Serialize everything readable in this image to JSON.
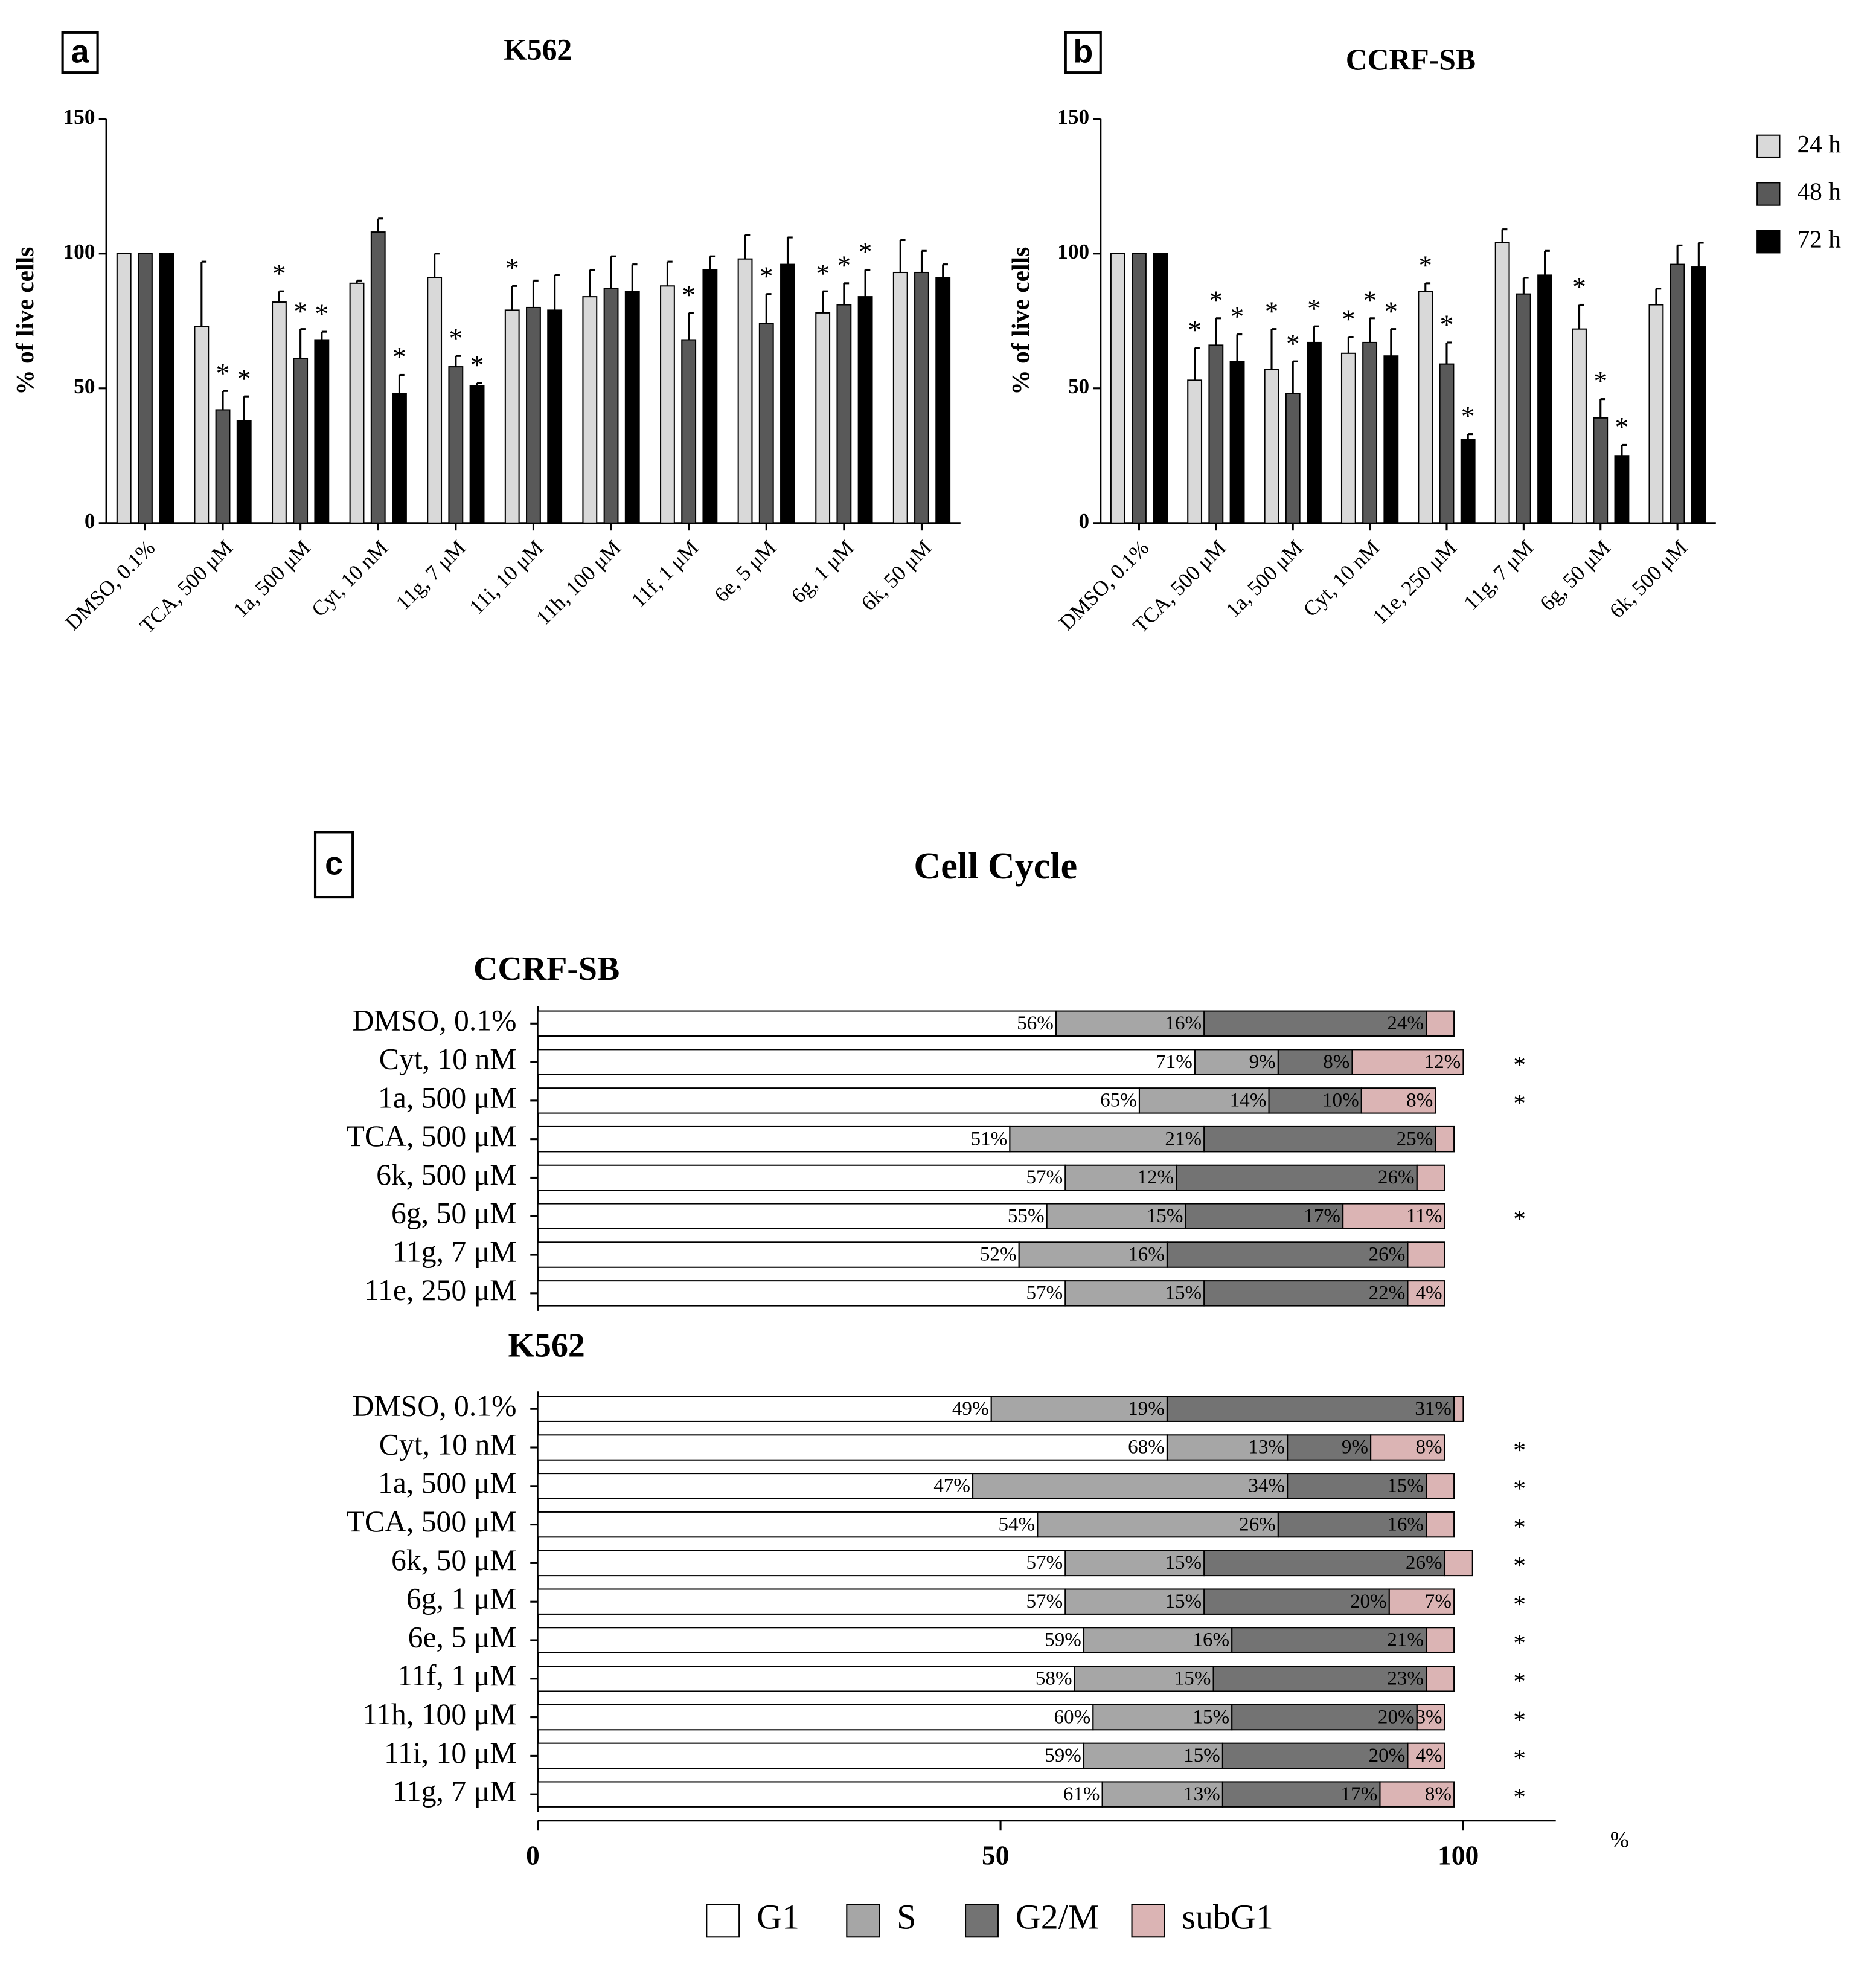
{
  "chart_data": [
    {
      "type": "bar",
      "panel": "a",
      "title": "K562",
      "ylabel": "% of live cells",
      "categories": [
        "DMSO, 0.1%",
        "TCA, 500 μM",
        "1a, 500 μM",
        "Cyt, 10 nM",
        "11g, 7 μM",
        "11i, 10 μM",
        "11h, 100 μM",
        "11f, 1 μM",
        "6e, 5 μM",
        "6g, 1 μM",
        "6k, 50 μM"
      ],
      "ylim": [
        0,
        150
      ],
      "yticks": [
        0,
        50,
        100,
        150
      ],
      "series": [
        {
          "color": "#d9d9d9",
          "values": [
            100,
            73,
            82,
            89,
            91,
            79,
            84,
            88,
            98,
            78,
            93
          ],
          "errors": [
            0,
            24,
            4,
            1,
            9,
            9,
            10,
            9,
            9,
            8,
            12
          ],
          "annotations": [
            null,
            null,
            "*",
            null,
            null,
            "*",
            null,
            null,
            null,
            "*",
            null
          ]
        },
        {
          "color": "#595959",
          "values": [
            100,
            42,
            61,
            108,
            58,
            80,
            87,
            68,
            74,
            81,
            93
          ],
          "errors": [
            0,
            7,
            11,
            5,
            4,
            10,
            12,
            10,
            11,
            8,
            8
          ],
          "annotations": [
            null,
            "*",
            "*",
            null,
            "*",
            null,
            null,
            "*",
            "*",
            "*",
            null
          ]
        },
        {
          "color": "#000000",
          "values": [
            100,
            38,
            68,
            48,
            51,
            79,
            86,
            94,
            96,
            84,
            91
          ],
          "errors": [
            0,
            9,
            3,
            7,
            1,
            13,
            10,
            5,
            10,
            10,
            5
          ],
          "annotations": [
            null,
            "*",
            "*",
            "*",
            "*",
            null,
            null,
            null,
            null,
            "*",
            null
          ]
        }
      ]
    },
    {
      "type": "bar",
      "panel": "b",
      "title": "CCRF-SB",
      "ylabel": "% of live cells",
      "categories": [
        "DMSO, 0.1%",
        "TCA, 500 μM",
        "1a, 500 μM",
        "Cyt, 10 nM",
        "11e, 250 μM",
        "11g, 7 μM",
        "6g, 50 μM",
        "6k, 500 μM"
      ],
      "ylim": [
        0,
        150
      ],
      "yticks": [
        0,
        50,
        100,
        150
      ],
      "series": [
        {
          "name": "24 h",
          "color": "#d9d9d9",
          "values": [
            100,
            53,
            57,
            63,
            86,
            104,
            72,
            81
          ],
          "errors": [
            0,
            12,
            15,
            6,
            3,
            5,
            9,
            6
          ],
          "annotations": [
            null,
            "*",
            "*",
            "*",
            "*",
            null,
            "*",
            null
          ]
        },
        {
          "name": "48 h",
          "color": "#595959",
          "values": [
            100,
            66,
            48,
            67,
            59,
            85,
            39,
            96
          ],
          "errors": [
            0,
            10,
            12,
            9,
            8,
            6,
            7,
            7
          ],
          "annotations": [
            null,
            "*",
            "*",
            "*",
            "*",
            null,
            "*",
            null
          ]
        },
        {
          "name": "72 h",
          "color": "#000000",
          "values": [
            100,
            60,
            67,
            62,
            31,
            92,
            25,
            95
          ],
          "errors": [
            0,
            10,
            6,
            10,
            2,
            9,
            4,
            9
          ],
          "annotations": [
            null,
            "*",
            "*",
            "*",
            "*",
            null,
            "*",
            null
          ]
        }
      ]
    },
    {
      "type": "stacked-barh",
      "panel": "c",
      "title": "Cell Cycle",
      "xlabel": "%",
      "xlim": [
        0,
        110
      ],
      "xticks": [
        0,
        50,
        100
      ],
      "legend": [
        {
          "name": "G1",
          "color": "#ffffff"
        },
        {
          "name": "S",
          "color": "#a6a6a6"
        },
        {
          "name": "G2/M",
          "color": "#737373"
        },
        {
          "name": "subG1",
          "color": "#dbb4b4"
        }
      ],
      "groups": [
        {
          "title": "CCRF-SB",
          "categories": [
            "DMSO, 0.1%",
            "Cyt, 10 nM",
            "1a, 500 μM",
            "TCA, 500 μM",
            "6k, 500 μM",
            "6g, 50 μM",
            "11g, 7 μM",
            "11e, 250 μM"
          ],
          "series": [
            {
              "values": [
                56,
                71,
                65,
                51,
                57,
                55,
                52,
                57
              ],
              "value_labels": [
                "56%",
                "71%",
                "65%",
                "51%",
                "57%",
                "55%",
                "52%",
                "57%"
              ]
            },
            {
              "values": [
                16,
                9,
                14,
                21,
                12,
                15,
                16,
                15
              ],
              "value_labels": [
                "16%",
                "9%",
                "14%",
                "21%",
                "12%",
                "15%",
                "16%",
                "15%"
              ]
            },
            {
              "values": [
                24,
                8,
                10,
                25,
                26,
                17,
                26,
                22
              ],
              "value_labels": [
                "24%",
                "8%",
                "10%",
                "25%",
                "26%",
                "17%",
                "26%",
                "22%"
              ]
            },
            {
              "values": [
                3,
                12,
                8,
                2,
                3,
                11,
                4,
                4
              ],
              "value_labels": [
                null,
                "12%",
                "8%",
                null,
                null,
                "11%",
                null,
                "4%"
              ]
            }
          ],
          "annotations": [
            null,
            "*",
            "*",
            null,
            null,
            "*",
            null,
            null
          ]
        },
        {
          "title": "K562",
          "categories": [
            "DMSO, 0.1%",
            "Cyt, 10 nM",
            "1a, 500 μM",
            "TCA, 500 μM",
            "6k, 50 μM",
            "6g, 1 μM",
            "6e, 5 μM",
            "11f, 1 μM",
            "11h, 100 μM",
            "11i, 10 μM",
            "11g, 7 μM"
          ],
          "series": [
            {
              "values": [
                49,
                68,
                47,
                54,
                57,
                57,
                59,
                58,
                60,
                59,
                61
              ],
              "value_labels": [
                "49%",
                "68%",
                "47%",
                "54%",
                "57%",
                "57%",
                "59%",
                "58%",
                "60%",
                "59%",
                "61%"
              ]
            },
            {
              "values": [
                19,
                13,
                34,
                26,
                15,
                15,
                16,
                15,
                15,
                15,
                13
              ],
              "value_labels": [
                "19%",
                "13%",
                "34%",
                "26%",
                "15%",
                "15%",
                "16%",
                "15%",
                "15%",
                "15%",
                "13%"
              ]
            },
            {
              "values": [
                31,
                9,
                15,
                16,
                26,
                20,
                21,
                23,
                20,
                20,
                17
              ],
              "value_labels": [
                "31%",
                "9%",
                "15%",
                "16%",
                "26%",
                "20%",
                "21%",
                "23%",
                "20%",
                "20%",
                "17%"
              ]
            },
            {
              "values": [
                1,
                8,
                3,
                3,
                3,
                7,
                3,
                3,
                3,
                4,
                8
              ],
              "value_labels": [
                null,
                "8%",
                null,
                null,
                null,
                "7%",
                null,
                null,
                "3%",
                "4%",
                "8%"
              ]
            }
          ],
          "annotations": [
            null,
            "*",
            "*",
            "*",
            "*",
            "*",
            "*",
            "*",
            "*",
            "*",
            "*"
          ]
        }
      ]
    }
  ]
}
